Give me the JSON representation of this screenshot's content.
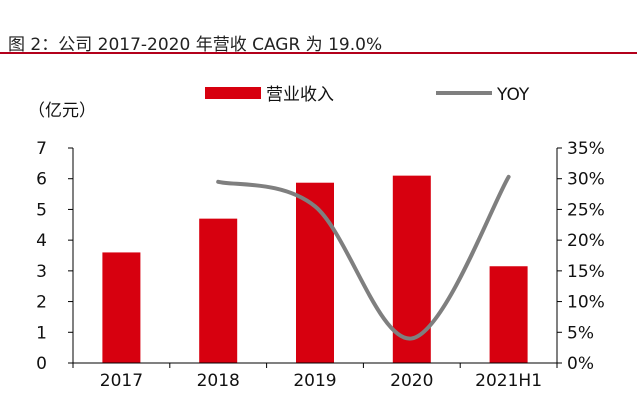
{
  "figure_title": "图 2：公司 2017-2020 年营收 CAGR 为 19.0%",
  "colors": {
    "bar": "#d7000f",
    "line": "#7f7f7f",
    "rule": "#b3001b",
    "axis": "#000000"
  },
  "chart_data": {
    "type": "bar",
    "title": "",
    "ylabel": "（亿元）",
    "categories": [
      "2017",
      "2018",
      "2019",
      "2020",
      "2021H1"
    ],
    "series": [
      {
        "name": "营业收入",
        "type": "bar",
        "axis": "left",
        "values": [
          3.6,
          4.7,
          5.87,
          6.1,
          3.15
        ]
      },
      {
        "name": "YOY",
        "type": "line",
        "axis": "right",
        "values": [
          null,
          29.5,
          25.5,
          4.0,
          30.3
        ]
      }
    ],
    "ylim_left": [
      0,
      7
    ],
    "yticks_left": [
      "0",
      "1",
      "2",
      "3",
      "4",
      "5",
      "6",
      "7"
    ],
    "ylim_right": [
      0,
      35
    ],
    "yticks_right": [
      "0%",
      "5%",
      "10%",
      "15%",
      "20%",
      "25%",
      "30%",
      "35%"
    ],
    "legend": {
      "position": "top",
      "labels": [
        "营业收入",
        "YOY"
      ]
    },
    "grid": false
  }
}
